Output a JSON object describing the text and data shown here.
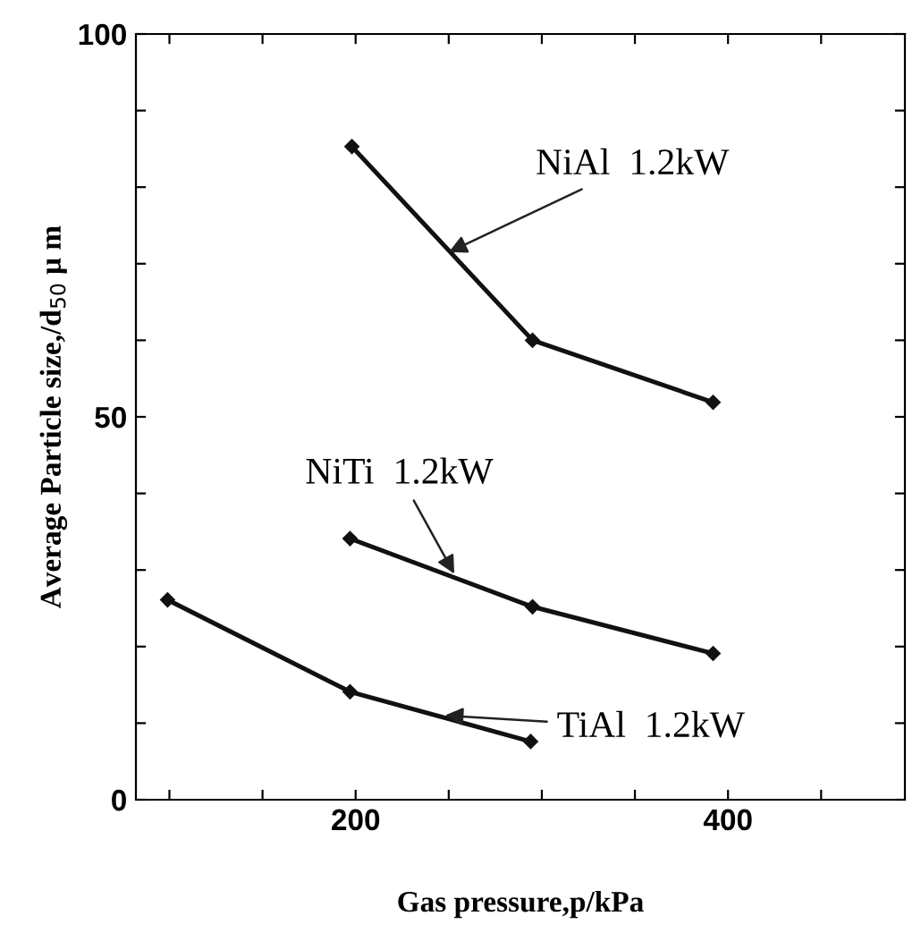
{
  "chart_data": {
    "type": "line",
    "xlabel": "Gas pressure,p/kPa",
    "ylabel": "Average Particle size,/d$_{50}$ μ m",
    "series": [
      {
        "color": "#111111",
        "x": [
          198,
          295,
          392
        ],
        "values": [
          85.3,
          60,
          51.9
        ]
      },
      {
        "color": "#111111",
        "x": [
          197,
          295,
          392
        ],
        "values": [
          34.1,
          25.2,
          19.1
        ]
      },
      {
        "color": "#111111",
        "x": [
          99,
          197,
          294
        ],
        "values": [
          26.1,
          14.1,
          7.6
        ]
      }
    ],
    "annotations": [
      {
        "text": "NiAl  1.2kW",
        "x": 250,
        "y": 71.5
      },
      {
        "text": "NiTi  1.2kW",
        "x": 253,
        "y": 29.5
      },
      {
        "text": "TiAl  1.2kW",
        "x": 248,
        "y": 11
      }
    ],
    "xlim": [
      82,
      495
    ],
    "ylim": [
      0,
      100
    ],
    "xticks": [
      {
        "value": 100,
        "label": null
      },
      {
        "value": 150,
        "label": null
      },
      200,
      {
        "value": 250,
        "label": null
      },
      {
        "value": 300,
        "label": null
      },
      {
        "value": 350,
        "label": null
      },
      400,
      {
        "value": 450,
        "label": null
      }
    ],
    "yticks": [
      0,
      {
        "value": 10,
        "label": null
      },
      {
        "value": 20,
        "label": null
      },
      {
        "value": 30,
        "label": null
      },
      {
        "value": 40,
        "label": null
      },
      50,
      {
        "value": 60,
        "label": null
      },
      {
        "value": 70,
        "label": null
      },
      {
        "value": 80,
        "label": null
      },
      {
        "value": 90,
        "label": null
      },
      100
    ],
    "grid": false,
    "marker": "diamond",
    "line_style": "solid"
  }
}
